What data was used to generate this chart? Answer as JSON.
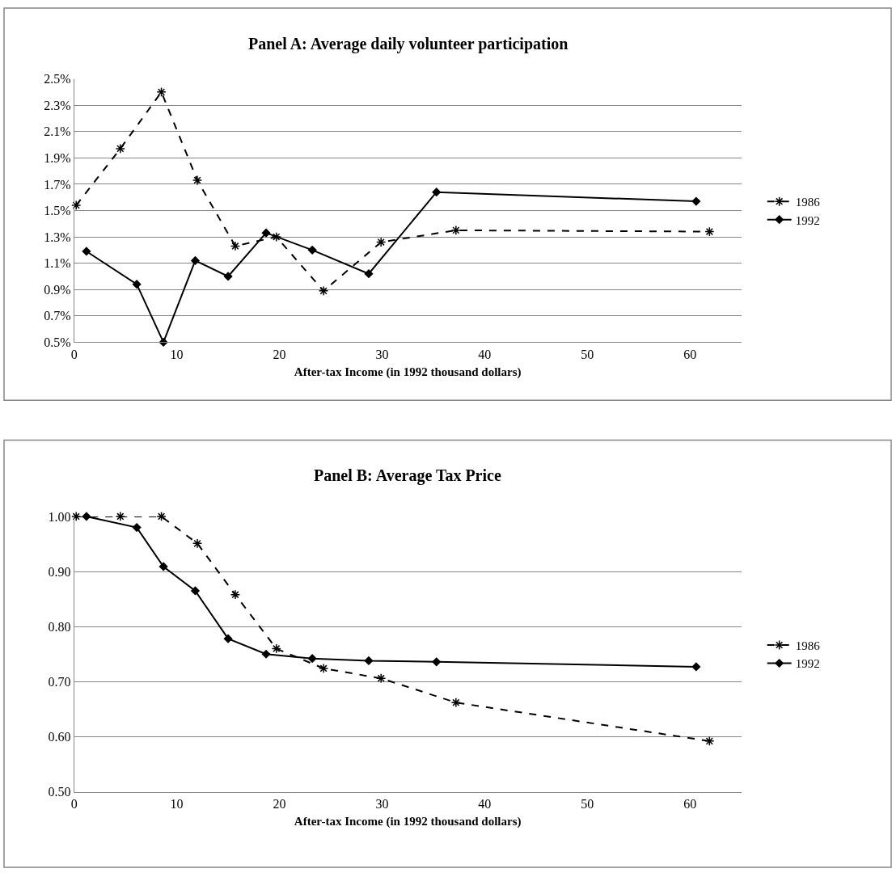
{
  "chart_data": [
    {
      "type": "line",
      "title": "Panel A: Average daily volunteer participation",
      "xlabel": "After-tax Income (in 1992 thousand dollars)",
      "xlim": [
        0,
        65
      ],
      "xticks": [
        0,
        10,
        20,
        30,
        40,
        50,
        60
      ],
      "ylim": [
        0.5,
        2.5
      ],
      "yticks": [
        {
          "value": 0.5,
          "label": "0.5%"
        },
        {
          "value": 0.7,
          "label": "0.7%"
        },
        {
          "value": 0.9,
          "label": "0.9%"
        },
        {
          "value": 1.1,
          "label": "1.1%"
        },
        {
          "value": 1.3,
          "label": "1.3%"
        },
        {
          "value": 1.5,
          "label": "1.5%"
        },
        {
          "value": 1.7,
          "label": "1.7%"
        },
        {
          "value": 1.9,
          "label": "1.9%"
        },
        {
          "value": 2.1,
          "label": "2.1%"
        },
        {
          "value": 2.3,
          "label": "2.3%"
        },
        {
          "value": 2.5,
          "label": "2.5%"
        }
      ],
      "grid": "y",
      "legend": "right",
      "series": [
        {
          "name": "1986",
          "color": "#000000",
          "line_style": "dashed",
          "marker": "cross",
          "x": [
            0.2,
            4.5,
            8.5,
            12.0,
            15.7,
            19.7,
            24.3,
            29.9,
            37.2,
            61.9
          ],
          "values": [
            1.54,
            1.97,
            2.4,
            1.73,
            1.23,
            1.3,
            0.89,
            1.26,
            1.35,
            1.34
          ]
        },
        {
          "name": "1992",
          "color": "#000000",
          "line_style": "solid",
          "marker": "diamond",
          "x": [
            1.2,
            6.1,
            8.7,
            11.8,
            15.0,
            18.7,
            23.2,
            28.7,
            35.3,
            60.6
          ],
          "values": [
            1.19,
            0.94,
            0.5,
            1.12,
            1.0,
            1.33,
            1.2,
            1.02,
            1.64,
            1.57
          ]
        }
      ]
    },
    {
      "type": "line",
      "title": "Panel B: Average Tax Price",
      "xlabel": "After-tax Income (in 1992 thousand dollars)",
      "xlim": [
        0,
        65
      ],
      "xticks": [
        0,
        10,
        20,
        30,
        40,
        50,
        60
      ],
      "ylim": [
        0.5,
        1.0
      ],
      "yticks": [
        {
          "value": 0.5,
          "label": "0.50"
        },
        {
          "value": 0.6,
          "label": "0.60"
        },
        {
          "value": 0.7,
          "label": "0.70"
        },
        {
          "value": 0.8,
          "label": "0.80"
        },
        {
          "value": 0.9,
          "label": "0.90"
        },
        {
          "value": 1.0,
          "label": "1.00"
        }
      ],
      "grid": "y",
      "legend": "right",
      "series": [
        {
          "name": "1986",
          "color": "#000000",
          "line_style": "dashed",
          "marker": "cross",
          "x": [
            0.2,
            4.5,
            8.5,
            12.0,
            15.7,
            19.7,
            24.3,
            29.9,
            37.2,
            61.9
          ],
          "values": [
            1.0,
            1.0,
            1.0,
            0.951,
            0.858,
            0.76,
            0.724,
            0.706,
            0.662,
            0.592
          ]
        },
        {
          "name": "1992",
          "color": "#000000",
          "line_style": "solid",
          "marker": "diamond",
          "x": [
            1.2,
            6.1,
            8.7,
            11.8,
            15.0,
            18.7,
            23.2,
            28.7,
            35.3,
            60.6
          ],
          "values": [
            1.0,
            0.98,
            0.909,
            0.865,
            0.778,
            0.75,
            0.742,
            0.738,
            0.736,
            0.727
          ]
        }
      ]
    }
  ]
}
